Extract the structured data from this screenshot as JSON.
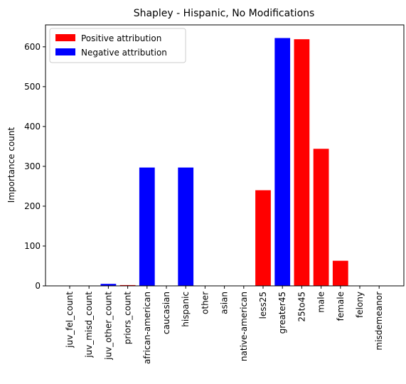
{
  "chart_data": {
    "type": "bar",
    "title": "Shapley - Hispanic, No Modifications",
    "xlabel": "",
    "ylabel": "Importance count",
    "categories": [
      "juv_fel_count",
      "juv_misd_count",
      "juv_other_count",
      "priors_count",
      "african-american",
      "caucasian",
      "hispanic",
      "other",
      "asian",
      "native-american",
      "less25",
      "greater45",
      "25to45",
      "male",
      "female",
      "felony",
      "misdemeanor"
    ],
    "values": [
      0,
      0,
      5,
      2,
      297,
      0,
      297,
      0,
      0,
      0,
      240,
      622,
      619,
      344,
      63,
      0,
      0
    ],
    "attribution": [
      "positive",
      "negative",
      "negative",
      "positive",
      "negative",
      "negative",
      "negative",
      "negative",
      "negative",
      "negative",
      "positive",
      "negative",
      "positive",
      "positive",
      "positive",
      "positive",
      "positive"
    ],
    "ylim": [
      0,
      655
    ],
    "yticks": [
      0,
      100,
      200,
      300,
      400,
      500,
      600
    ],
    "grid": false,
    "legend": {
      "placement": "top-left",
      "entries": [
        {
          "label": "Positive attribution",
          "color": "#ff0000"
        },
        {
          "label": "Negative attribution",
          "color": "#0000ff"
        }
      ]
    },
    "colors": {
      "positive": "#ff0000",
      "negative": "#0000ff"
    }
  }
}
